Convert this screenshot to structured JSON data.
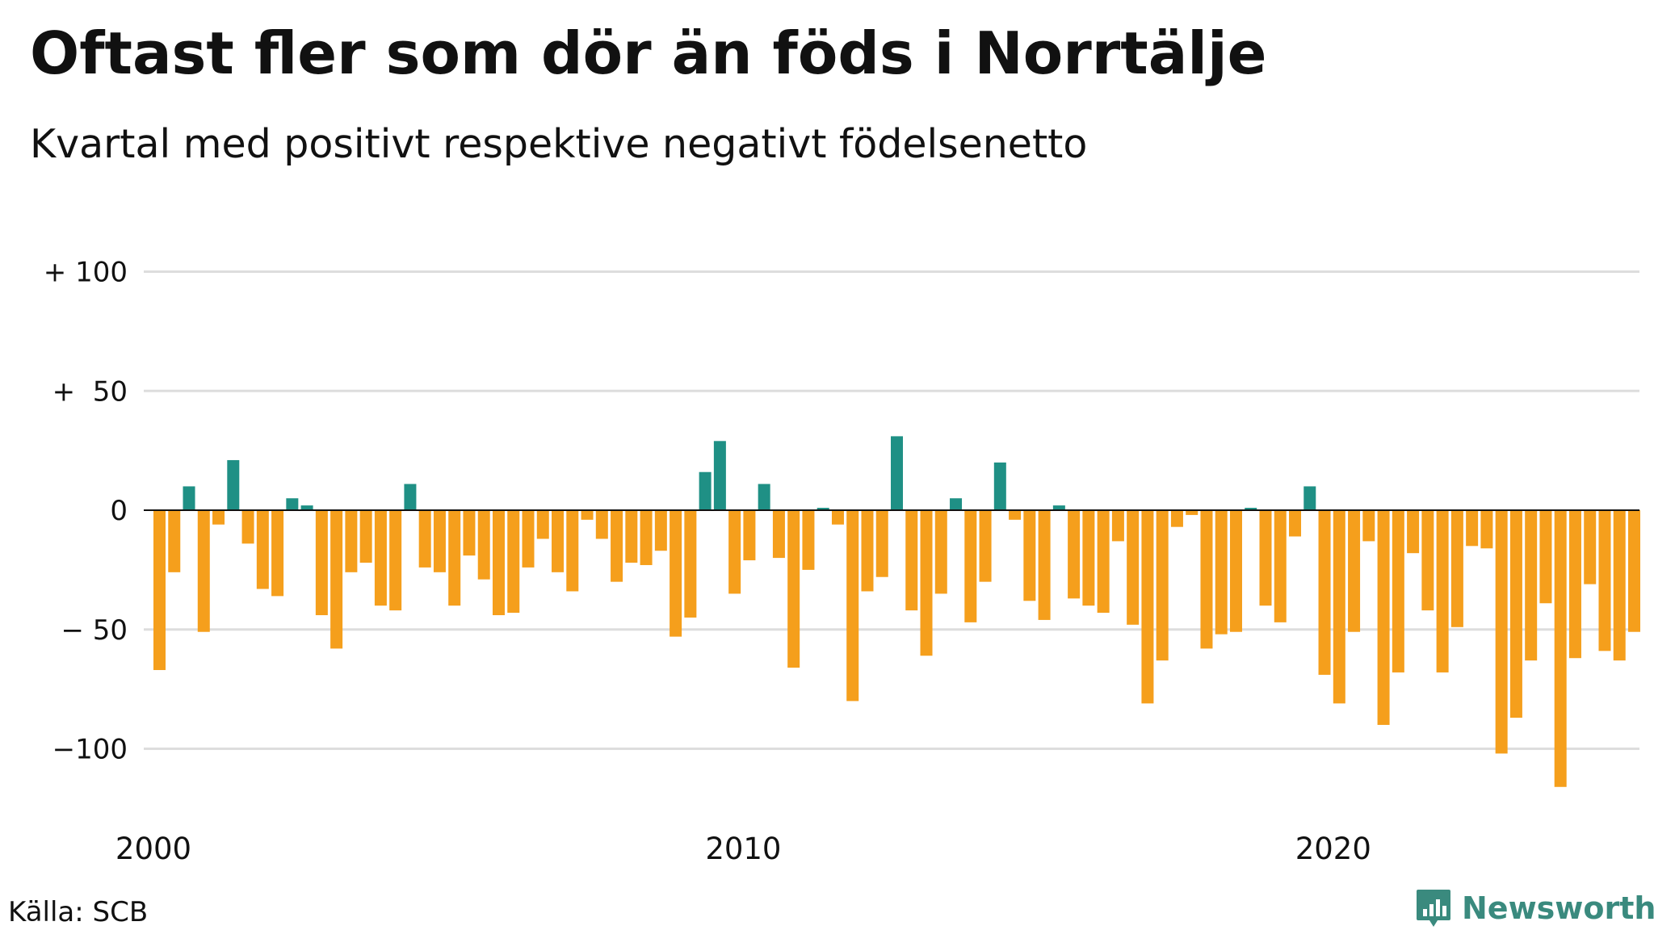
{
  "title": "Oftast fler som dör än föds i Norrtälje",
  "subtitle": "Kvartal med positivt respektive negativt födelsenetto",
  "source": "Källa: SCB",
  "brand": "Newsworthy",
  "colors": {
    "positive": "#1f9085",
    "negative": "#f59f1c",
    "grid": "#dddddd",
    "zero": "#111111"
  },
  "chart_data": {
    "type": "bar",
    "y_tick_labels": [
      "+ 100",
      "+  50",
      "0",
      "− 50",
      "−100"
    ],
    "y_tick_values": [
      100,
      50,
      0,
      -50,
      -100
    ],
    "ylim": [
      -120,
      100
    ],
    "x_tick_labels": [
      "2000",
      "2010",
      "2020"
    ],
    "start_year": 2000,
    "periods_per_year": 4,
    "grid": true,
    "values": [
      -67,
      -26,
      10,
      -51,
      -6,
      21,
      -14,
      -33,
      -36,
      5,
      2,
      -44,
      -58,
      -26,
      -22,
      -40,
      -42,
      11,
      -24,
      -26,
      -40,
      -19,
      -29,
      -44,
      -43,
      -24,
      -12,
      -26,
      -34,
      -4,
      -12,
      -30,
      -22,
      -23,
      -17,
      -53,
      -45,
      16,
      29,
      -35,
      -21,
      11,
      -20,
      -66,
      -25,
      1,
      -6,
      -80,
      -34,
      -28,
      31,
      -42,
      -61,
      -35,
      5,
      -47,
      -30,
      20,
      -4,
      -38,
      -46,
      2,
      -37,
      -40,
      -43,
      -13,
      -48,
      -81,
      -63,
      -7,
      -2,
      -58,
      -52,
      -51,
      1,
      -40,
      -47,
      -11,
      10,
      -69,
      -81,
      -51,
      -13,
      -90,
      -68,
      -18,
      -42,
      -68,
      -49,
      -15,
      -16,
      -102,
      -87,
      -63,
      -39,
      -116,
      -62,
      -31,
      -59,
      -63,
      -51
    ]
  }
}
